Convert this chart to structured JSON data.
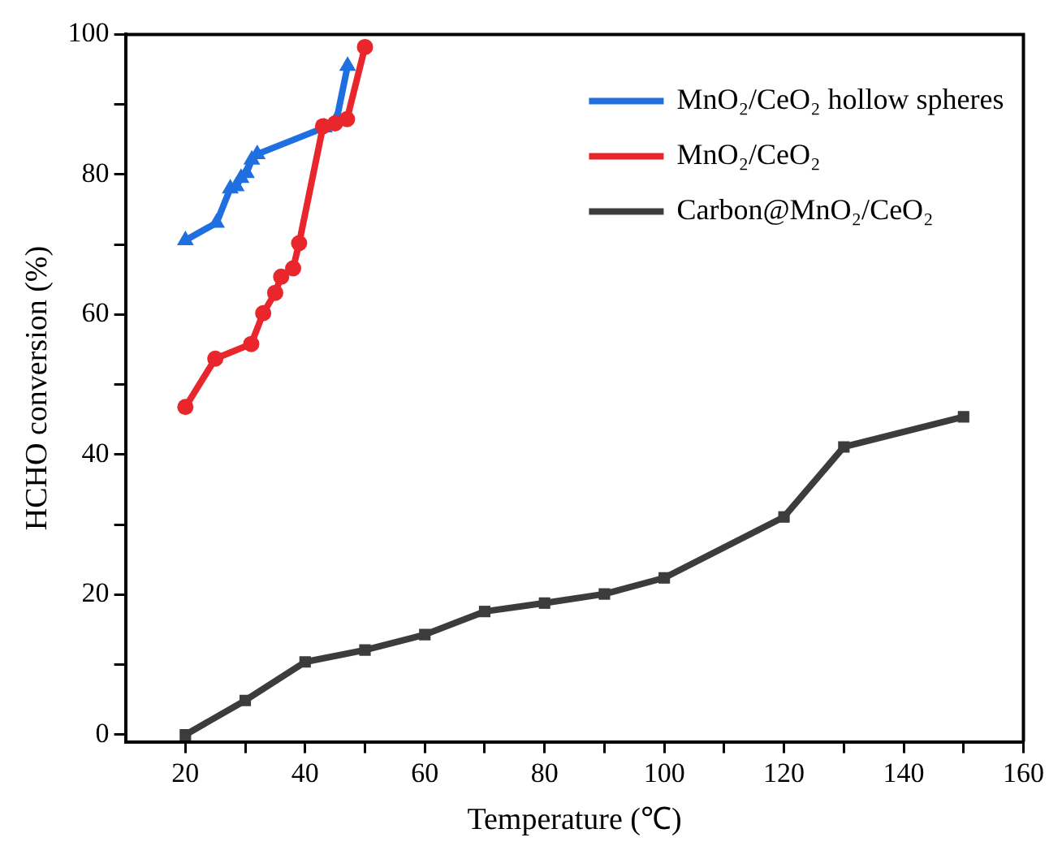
{
  "chart_data": {
    "type": "line",
    "xlabel": "Temperature (℃)",
    "ylabel": "HCHO conversion (%)",
    "xlim": [
      10,
      160
    ],
    "xticks": [
      20,
      {
        "value": 30,
        "label": null
      },
      40,
      {
        "value": 50,
        "label": null
      },
      60,
      {
        "value": 70,
        "label": null
      },
      80,
      {
        "value": 90,
        "label": null
      },
      100,
      {
        "value": 110,
        "label": null
      },
      120,
      {
        "value": 130,
        "label": null
      },
      140,
      {
        "value": 150,
        "label": null
      },
      160
    ],
    "ylim": [
      -1,
      100
    ],
    "yticks": [
      0,
      {
        "value": 10,
        "label": null
      },
      20,
      {
        "value": 30,
        "label": null
      },
      40,
      {
        "value": 50,
        "label": null
      },
      60,
      {
        "value": 70,
        "label": null
      },
      80,
      {
        "value": 90,
        "label": null
      },
      100
    ],
    "grid": false,
    "legend": "top right",
    "line_style": "solid",
    "series": [
      {
        "name": "MnO₂/CeO₂ hollow spheres",
        "color": "#1f6fe0",
        "marker": "triangle",
        "x": [
          20,
          25.2,
          27.5,
          28.5,
          29.3,
          30.2,
          31.1,
          32,
          43.2,
          45.3,
          47.1
        ],
        "values": [
          70.6,
          73.1,
          78,
          78.3,
          79.5,
          80.2,
          82.1,
          82.9,
          86.7,
          88,
          95.5
        ]
      },
      {
        "name": "MnO₂/CeO₂",
        "color": "#e8262b",
        "marker": "circle",
        "x": [
          20,
          25,
          31,
          33,
          35,
          36,
          38,
          39,
          43,
          45,
          47,
          50
        ],
        "values": [
          46.8,
          53.7,
          55.8,
          60.2,
          63.1,
          65.4,
          66.6,
          70.2,
          86.9,
          87.3,
          87.9,
          98.2
        ]
      },
      {
        "name": "Carbon@MnO₂/CeO₂",
        "color": "#3c3c3c",
        "marker": "square",
        "x": [
          20,
          30,
          40,
          50,
          60,
          70,
          80,
          90,
          100,
          120,
          130,
          150
        ],
        "values": [
          0,
          4.9,
          10.4,
          12.1,
          14.3,
          17.6,
          18.8,
          20.1,
          22.4,
          31.1,
          41.1,
          45.4
        ]
      }
    ]
  }
}
